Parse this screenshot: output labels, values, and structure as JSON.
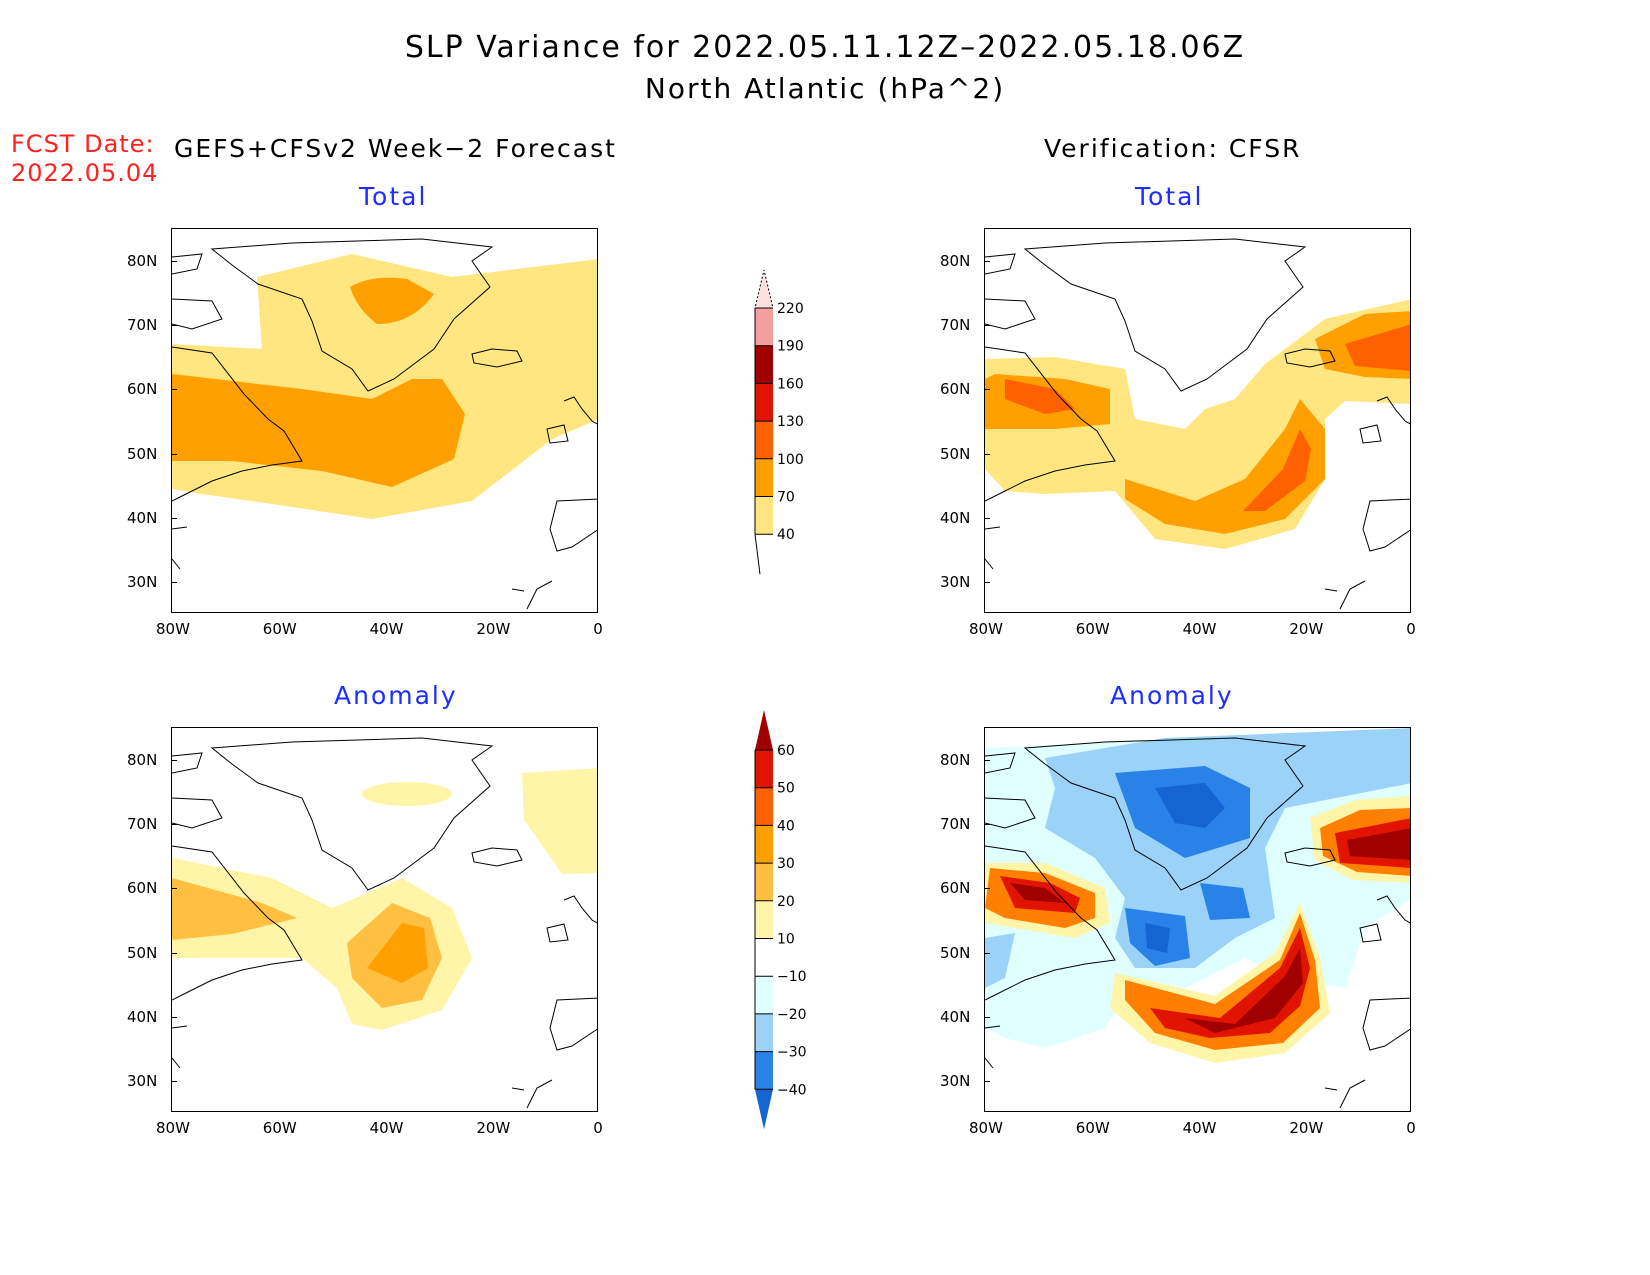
{
  "title": {
    "line1": "SLP Variance for 2022.05.11.12Z–2022.05.18.06Z",
    "line2": "North Atlantic (hPa^2)"
  },
  "fcst_date": {
    "label": "FCST Date:",
    "value": "2022.05.04"
  },
  "columns": {
    "left": "GEFS+CFSv2 Week−2 Forecast",
    "right": "Verification: CFSR"
  },
  "panels": {
    "total": "Total",
    "anomaly": "Anomaly"
  },
  "axes": {
    "lat_ticks": [
      "80N",
      "70N",
      "60N",
      "50N",
      "40N",
      "30N"
    ],
    "lon_ticks": [
      "80W",
      "60W",
      "40W",
      "20W",
      "0"
    ]
  },
  "colorbars": {
    "total": {
      "labels": [
        "220",
        "190",
        "160",
        "130",
        "100",
        "70",
        "40"
      ],
      "colors": [
        "#ffe0e0",
        "#f4a0a0",
        "#a00000",
        "#e01400",
        "#ff6000",
        "#ffa000",
        "#ffe680"
      ]
    },
    "anomaly": {
      "labels": [
        "60",
        "50",
        "40",
        "30",
        "20",
        "10",
        "−10",
        "−20",
        "−30",
        "−40"
      ],
      "colors": [
        "#a00000",
        "#e01400",
        "#ff6000",
        "#ffa000",
        "#ffbf40",
        "#fff5a8",
        "#ffffff",
        "#e0ffff",
        "#9ad2f8",
        "#2882e8",
        "#1464d2"
      ]
    }
  }
}
